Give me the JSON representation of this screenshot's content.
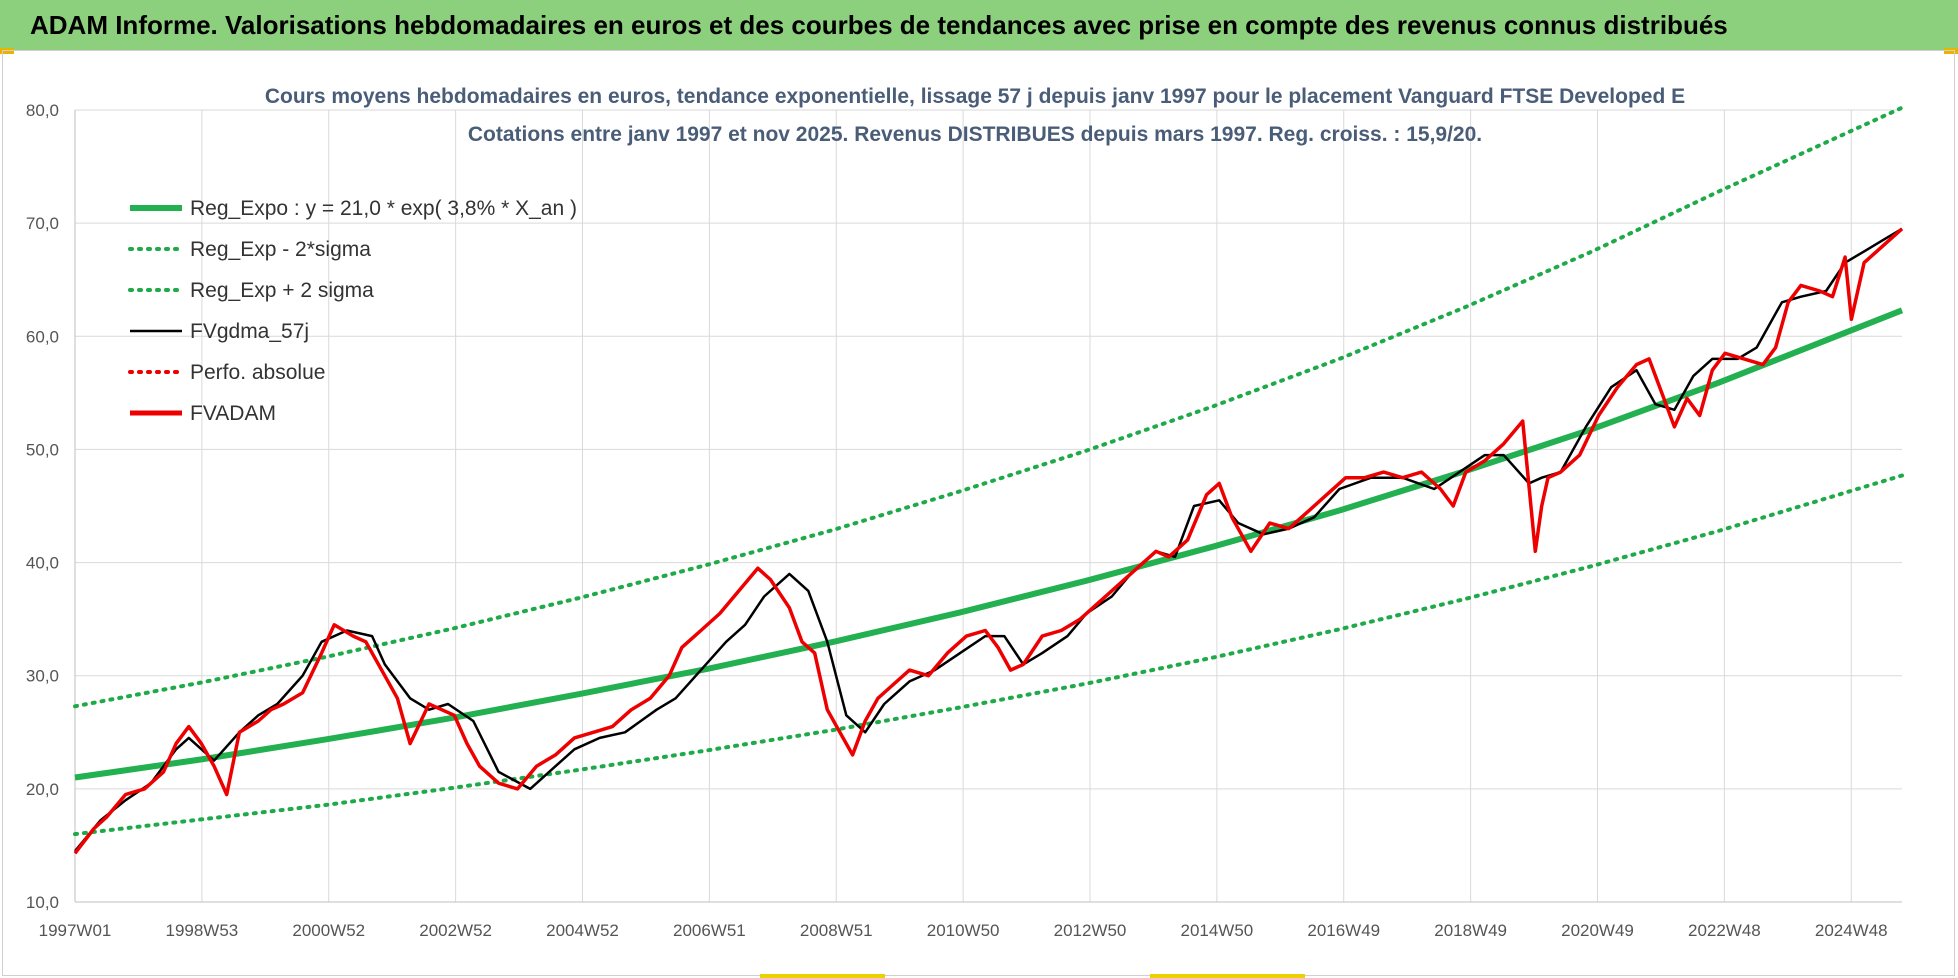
{
  "banner": {
    "text": "ADAM Informe. Valorisations hebdomadaires en euros et des courbes de tendances avec prise en compte des revenus connus distribués"
  },
  "colors": {
    "banner_bg": "#8ccf7c",
    "reg_green": "#22b050",
    "dot_green": "#1faa4a",
    "black_line": "#000000",
    "red_line": "#ee0000",
    "grid": "#d9d9d9",
    "title": "#4a5d78"
  },
  "chart_data": {
    "type": "line",
    "title": "Cours moyens hebdomadaires en euros, tendance exponentielle, lissage 57 j depuis janv 1997 pour le placement Vanguard FTSE Developed E",
    "subtitle": "Cotations entre janv 1997 et nov 2025. Revenus DISTRIBUES depuis mars 1997. Reg. croiss. : 15,9/20.",
    "xlabel": "",
    "ylabel": "",
    "ylim": [
      10,
      80
    ],
    "yticks": [
      "10,0",
      "20,0",
      "30,0",
      "40,0",
      "50,0",
      "60,0",
      "70,0",
      "80,0"
    ],
    "xlim": [
      1997.0,
      2025.9
    ],
    "xtick_labels": [
      "1997W01",
      "1998W53",
      "2000W52",
      "2002W52",
      "2004W52",
      "2006W51",
      "2008W51",
      "2010W50",
      "2012W50",
      "2014W50",
      "2016W49",
      "2018W49",
      "2020W49",
      "2022W48",
      "2024W48"
    ],
    "grid": true,
    "legend_position": "top-left",
    "series": [
      {
        "name": "Reg_Expo : y = 21,0 * exp( 3,8% * X_an )",
        "style": "solid-thick",
        "color": "#22b050",
        "x": [
          1997.0,
          1999.0,
          2001.0,
          2003.0,
          2005.0,
          2007.0,
          2009.0,
          2011.0,
          2013.0,
          2015.0,
          2017.0,
          2019.0,
          2021.0,
          2023.0,
          2025.9
        ],
        "values": [
          21.0,
          22.6,
          24.4,
          26.3,
          28.4,
          30.6,
          33.0,
          35.6,
          38.4,
          41.4,
          44.6,
          48.1,
          51.8,
          55.9,
          62.3
        ]
      },
      {
        "name": "Reg_Exp - 2*sigma",
        "style": "dotted",
        "color": "#1faa4a",
        "x": [
          1997.0,
          1999.0,
          2001.0,
          2003.0,
          2005.0,
          2007.0,
          2009.0,
          2011.0,
          2013.0,
          2015.0,
          2017.0,
          2019.0,
          2021.0,
          2023.0,
          2025.9
        ],
        "values": [
          16.0,
          17.3,
          18.6,
          20.1,
          21.7,
          23.4,
          25.2,
          27.2,
          29.3,
          31.6,
          34.1,
          36.8,
          39.7,
          42.8,
          47.7
        ]
      },
      {
        "name": "Reg_Exp + 2 sigma",
        "style": "dotted",
        "color": "#1faa4a",
        "x": [
          1997.0,
          1999.0,
          2001.0,
          2003.0,
          2005.0,
          2007.0,
          2009.0,
          2011.0,
          2013.0,
          2015.0,
          2017.0,
          2019.0,
          2021.0,
          2023.0,
          2025.9
        ],
        "values": [
          27.3,
          29.4,
          31.7,
          34.2,
          36.9,
          39.8,
          42.9,
          46.3,
          49.9,
          53.8,
          58.0,
          62.6,
          67.5,
          72.8,
          80.2
        ]
      },
      {
        "name": "FVgdma_57j",
        "style": "solid",
        "color": "#000000",
        "x": [
          1997.0,
          1997.4,
          1997.8,
          1998.2,
          1998.6,
          1998.8,
          1999.2,
          1999.6,
          1999.9,
          2000.2,
          2000.6,
          2000.9,
          2001.3,
          2001.7,
          2001.9,
          2002.3,
          2002.6,
          2002.9,
          2003.3,
          2003.7,
          2004.2,
          2004.6,
          2004.9,
          2005.3,
          2005.7,
          2006.2,
          2006.5,
          2006.9,
          2007.3,
          2007.6,
          2007.9,
          2008.3,
          2008.6,
          2008.9,
          2009.2,
          2009.5,
          2009.8,
          2010.2,
          2010.6,
          2011.0,
          2011.4,
          2011.7,
          2012.0,
          2012.3,
          2012.7,
          2013.0,
          2013.4,
          2013.7,
          2014.1,
          2014.4,
          2014.7,
          2015.1,
          2015.4,
          2015.8,
          2016.2,
          2016.6,
          2017.0,
          2017.5,
          2018.0,
          2018.5,
          2018.9,
          2019.3,
          2019.6,
          2020.0,
          2020.2,
          2020.5,
          2020.9,
          2021.3,
          2021.7,
          2022.0,
          2022.3,
          2022.6,
          2022.9,
          2023.3,
          2023.6,
          2024.0,
          2024.3,
          2024.7,
          2025.0,
          2025.3,
          2025.6,
          2025.9
        ],
        "values": [
          14.5,
          17.2,
          19.0,
          20.5,
          23.5,
          24.5,
          22.5,
          25.0,
          26.5,
          27.5,
          30.0,
          33.0,
          34.0,
          33.5,
          31.0,
          28.0,
          27.0,
          27.5,
          26.0,
          21.5,
          20.0,
          22.0,
          23.5,
          24.5,
          25.0,
          27.0,
          28.0,
          30.5,
          33.0,
          34.5,
          37.0,
          39.0,
          37.5,
          33.0,
          26.5,
          25.0,
          27.5,
          29.5,
          30.5,
          32.0,
          33.5,
          33.5,
          31.0,
          32.0,
          33.5,
          35.5,
          37.0,
          39.0,
          41.0,
          40.5,
          45.0,
          45.5,
          43.5,
          42.5,
          43.0,
          44.0,
          46.5,
          47.5,
          47.5,
          46.5,
          48.0,
          49.5,
          49.5,
          47.0,
          47.5,
          48.0,
          52.0,
          55.5,
          57.0,
          54.0,
          53.5,
          56.5,
          58.0,
          58.0,
          59.0,
          63.0,
          63.5,
          64.0,
          66.5,
          67.5,
          68.5,
          69.5
        ]
      },
      {
        "name": "Perfo. absolue",
        "style": "dotted",
        "color": "#ee0000",
        "x": [],
        "values": []
      },
      {
        "name": "FVADAM",
        "style": "solid-thick",
        "color": "#ee0000",
        "x": [
          1997.0,
          1997.3,
          1997.5,
          1997.8,
          1998.1,
          1998.4,
          1998.6,
          1998.8,
          1999.0,
          1999.2,
          1999.4,
          1999.6,
          1999.9,
          2000.1,
          2000.3,
          2000.6,
          2000.9,
          2001.1,
          2001.4,
          2001.6,
          2001.9,
          2002.1,
          2002.3,
          2002.6,
          2002.8,
          2003.0,
          2003.2,
          2003.4,
          2003.7,
          2004.0,
          2004.3,
          2004.6,
          2004.9,
          2005.2,
          2005.5,
          2005.8,
          2006.1,
          2006.4,
          2006.6,
          2006.9,
          2007.2,
          2007.5,
          2007.8,
          2008.0,
          2008.3,
          2008.5,
          2008.7,
          2008.9,
          2009.1,
          2009.3,
          2009.5,
          2009.7,
          2009.9,
          2010.2,
          2010.5,
          2010.8,
          2011.1,
          2011.4,
          2011.6,
          2011.8,
          2012.0,
          2012.3,
          2012.6,
          2012.9,
          2013.2,
          2013.5,
          2013.8,
          2014.1,
          2014.3,
          2014.6,
          2014.9,
          2015.1,
          2015.3,
          2015.6,
          2015.9,
          2016.2,
          2016.5,
          2016.8,
          2017.1,
          2017.4,
          2017.7,
          2018.0,
          2018.3,
          2018.6,
          2018.8,
          2019.0,
          2019.3,
          2019.6,
          2019.9,
          2020.1,
          2020.2,
          2020.3,
          2020.5,
          2020.8,
          2021.1,
          2021.4,
          2021.7,
          2021.9,
          2022.1,
          2022.3,
          2022.5,
          2022.7,
          2022.9,
          2023.1,
          2023.4,
          2023.7,
          2023.9,
          2024.1,
          2024.3,
          2024.6,
          2024.8,
          2025.0,
          2025.1,
          2025.3,
          2025.5,
          2025.7,
          2025.9
        ],
        "values": [
          14.3,
          16.5,
          17.5,
          19.5,
          20.0,
          21.5,
          24.0,
          25.5,
          24.0,
          22.0,
          19.5,
          25.0,
          26.0,
          27.0,
          27.5,
          28.5,
          32.0,
          34.5,
          33.5,
          33.0,
          30.0,
          28.0,
          24.0,
          27.5,
          27.0,
          26.5,
          24.0,
          22.0,
          20.5,
          20.0,
          22.0,
          23.0,
          24.5,
          25.0,
          25.5,
          27.0,
          28.0,
          30.0,
          32.5,
          34.0,
          35.5,
          37.5,
          39.5,
          38.5,
          36.0,
          33.0,
          32.0,
          27.0,
          25.0,
          23.0,
          26.0,
          28.0,
          29.0,
          30.5,
          30.0,
          32.0,
          33.5,
          34.0,
          32.5,
          30.5,
          31.0,
          33.5,
          34.0,
          35.0,
          36.5,
          38.0,
          39.5,
          41.0,
          40.5,
          42.0,
          46.0,
          47.0,
          44.0,
          41.0,
          43.5,
          43.0,
          44.5,
          46.0,
          47.5,
          47.5,
          48.0,
          47.5,
          48.0,
          46.5,
          45.0,
          48.0,
          49.0,
          50.5,
          52.5,
          41.0,
          45.0,
          47.5,
          48.0,
          49.5,
          53.0,
          55.5,
          57.5,
          58.0,
          55.0,
          52.0,
          54.5,
          53.0,
          57.0,
          58.5,
          58.0,
          57.5,
          59.0,
          63.0,
          64.5,
          64.0,
          63.5,
          67.0,
          61.5,
          66.5,
          67.5,
          68.5,
          69.5
        ]
      }
    ]
  }
}
